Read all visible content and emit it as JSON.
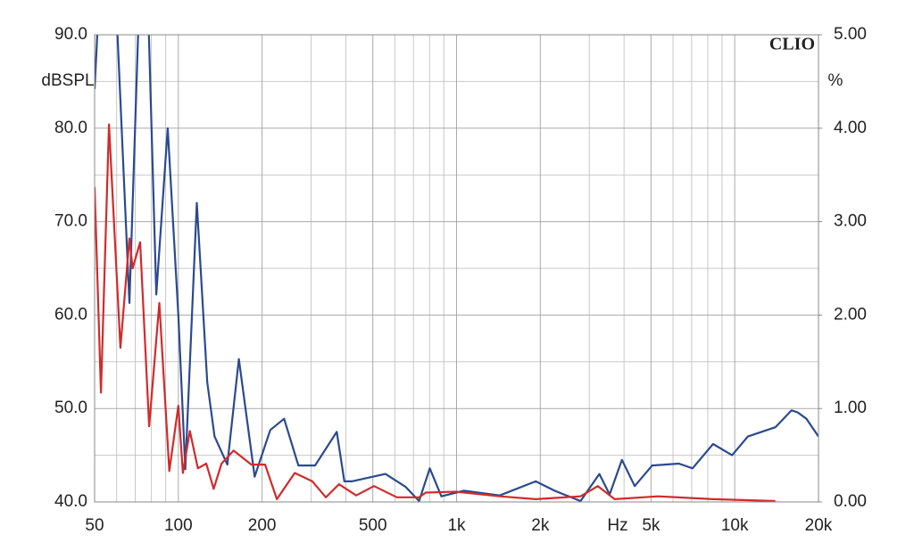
{
  "chart_data": {
    "type": "line",
    "brand": "CLIO",
    "y_label": "dBSPL",
    "y2_label": "%",
    "x_label": "Hz",
    "x_scale": "log",
    "xlim": [
      50,
      20000
    ],
    "xticks": [
      50,
      100,
      200,
      500,
      {
        "value": 1000,
        "label": "1k"
      },
      {
        "value": 2000,
        "label": "2k"
      },
      {
        "value": 5000,
        "label": "5k"
      },
      {
        "value": 10000,
        "label": "10k"
      },
      {
        "value": 20000,
        "label": "20k"
      }
    ],
    "xminor_grid": [
      60,
      70,
      80,
      90,
      300,
      400,
      600,
      700,
      800,
      900,
      3000,
      4000,
      6000,
      7000,
      8000,
      9000
    ],
    "ylim": [
      40,
      90
    ],
    "yticks": [
      {
        "value": 40,
        "label": "40.0"
      },
      {
        "value": 50,
        "label": "50.0"
      },
      {
        "value": 60,
        "label": "60.0"
      },
      {
        "value": 70,
        "label": "70.0"
      },
      {
        "value": 80,
        "label": "80.0"
      },
      {
        "value": 90,
        "label": "90.0"
      }
    ],
    "yminor_grid": [
      45,
      55,
      65,
      75,
      85
    ],
    "y2lim": [
      0,
      5
    ],
    "y2ticks": [
      {
        "value": 0,
        "label": "0.00"
      },
      {
        "value": 1,
        "label": "1.00"
      },
      {
        "value": 2,
        "label": "2.00"
      },
      {
        "value": 3,
        "label": "3.00"
      },
      {
        "value": 4,
        "label": "4.00"
      },
      {
        "value": 5,
        "label": "5.00"
      }
    ],
    "grid": true,
    "series": [
      {
        "color": "#2b4a8e",
        "x": [
          50,
          51.5,
          55,
          60,
          66.7,
          72,
          78,
          83.3,
          91.6,
          100,
          105.9,
          116.5,
          127,
          135,
          150,
          165,
          188,
          214,
          240,
          270,
          310,
          371,
          395,
          420,
          555,
          657,
          733,
          801,
          882,
          1062,
          1430,
          1925,
          2250,
          2790,
          3260,
          3550,
          3930,
          4370,
          5050,
          6300,
          7050,
          8360,
          9780,
          11150,
          14000,
          16000,
          16800,
          18100,
          20000
        ],
        "values": [
          84.2,
          92,
          92,
          92,
          61.3,
          92,
          92,
          62.2,
          80,
          60,
          43.5,
          72,
          52.8,
          47,
          44,
          55.3,
          42.7,
          47.7,
          48.9,
          43.9,
          43.9,
          47.5,
          42.2,
          42.2,
          43,
          41.6,
          40.1,
          43.6,
          40.6,
          41.2,
          40.7,
          42.2,
          41.2,
          40.1,
          43,
          40.8,
          44.5,
          41.7,
          43.9,
          44.1,
          43.6,
          46.2,
          45,
          47,
          48,
          49.8,
          49.6,
          48.9,
          47
        ]
      },
      {
        "color": "#d12b2b",
        "x": [
          50,
          52.7,
          56.3,
          61.9,
          66.7,
          68.5,
          72.9,
          78.5,
          85.4,
          92.8,
          100,
          103.8,
          110,
          117.5,
          126,
          134,
          143,
          158,
          183,
          205,
          226,
          262,
          303,
          339,
          378,
          436,
          505,
          610,
          733,
          775,
          993,
          1430,
          1925,
          2790,
          3220,
          3700,
          5300,
          8360,
          14000
        ],
        "values": [
          73.7,
          51.7,
          80.4,
          56.5,
          68.2,
          65,
          67.8,
          48.1,
          61.3,
          43.3,
          50.3,
          43.1,
          47.6,
          43.6,
          44.1,
          41.4,
          44.1,
          45.5,
          44,
          44,
          40.3,
          43.1,
          42.2,
          40.5,
          41.9,
          40.7,
          41.7,
          40.5,
          40.5,
          41,
          41.1,
          40.6,
          40.3,
          40.6,
          41.7,
          40.3,
          40.6,
          40.3,
          40.1
        ]
      }
    ]
  }
}
